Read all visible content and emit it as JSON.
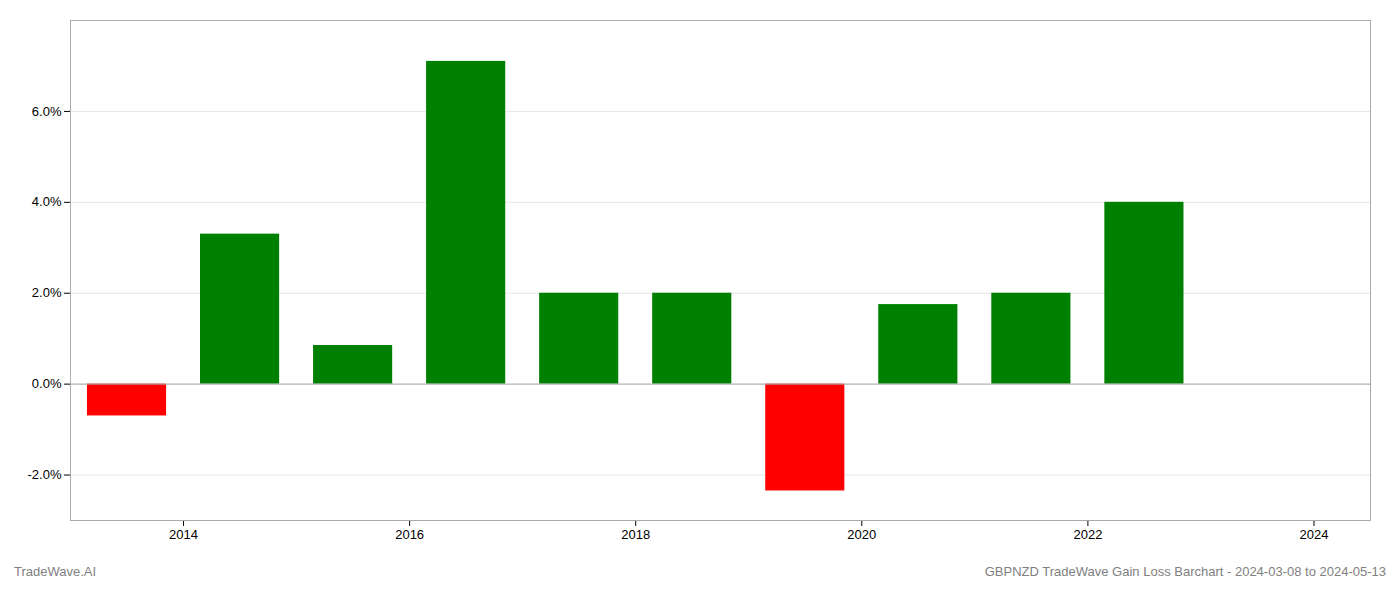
{
  "chart_data": {
    "type": "bar",
    "x": [
      2013.5,
      2014.5,
      2015.5,
      2016.5,
      2017.5,
      2018.5,
      2019.5,
      2020.5,
      2021.5,
      2022.5
    ],
    "values": [
      -0.7,
      3.3,
      0.85,
      7.1,
      2.0,
      2.0,
      -2.35,
      1.75,
      2.0,
      4.0
    ],
    "colors": [
      "#ff0000",
      "#008000",
      "#008000",
      "#008000",
      "#008000",
      "#008000",
      "#ff0000",
      "#008000",
      "#008000",
      "#008000"
    ],
    "xlim": [
      2013.0,
      2024.5
    ],
    "xticks": [
      2014,
      2016,
      2018,
      2020,
      2022,
      2024
    ],
    "ylim": [
      -3.0,
      8.0
    ],
    "yticks": [
      {
        "value": -2.0,
        "label": "-2.0%"
      },
      {
        "value": 0.0,
        "label": "0.0%"
      },
      {
        "value": 2.0,
        "label": "2.0%"
      },
      {
        "value": 4.0,
        "label": "4.0%"
      },
      {
        "value": 6.0,
        "label": "6.0%"
      }
    ],
    "grid": true,
    "annotations": [
      "TradeWave.AI",
      "GBPNZD TradeWave Gain Loss Barchart - 2024-03-08 to 2024-05-13"
    ]
  }
}
